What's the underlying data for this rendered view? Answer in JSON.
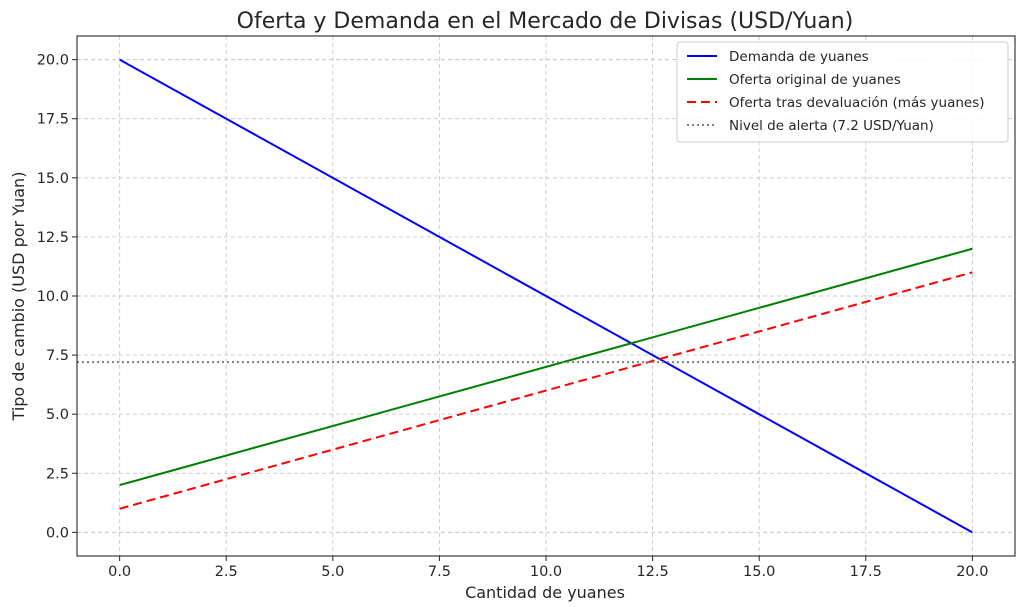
{
  "chart_data": {
    "type": "line",
    "title": "Oferta y Demanda en el Mercado de Divisas (USD/Yuan)",
    "xlabel": "Cantidad de yuanes",
    "ylabel": "Tipo de cambio (USD por Yuan)",
    "xlim": [
      -1,
      21
    ],
    "ylim": [
      -1,
      21
    ],
    "xticks": [
      "0.0",
      "2.5",
      "5.0",
      "7.5",
      "10.0",
      "12.5",
      "15.0",
      "17.5",
      "20.0"
    ],
    "yticks": [
      "0.0",
      "2.5",
      "5.0",
      "7.5",
      "10.0",
      "12.5",
      "15.0",
      "17.5",
      "20.0"
    ],
    "grid": true,
    "legend_position": "top-right",
    "series": [
      {
        "name": "Demanda de yuanes",
        "x": [
          0,
          20
        ],
        "y": [
          20,
          0
        ],
        "color": "#0000ff",
        "style": "solid"
      },
      {
        "name": "Oferta original de yuanes",
        "x": [
          0,
          20
        ],
        "y": [
          2,
          12
        ],
        "color": "#008000",
        "style": "solid"
      },
      {
        "name": "Oferta tras devaluación (más yuanes)",
        "x": [
          0,
          20
        ],
        "y": [
          1,
          11
        ],
        "color": "#ff0000",
        "style": "dashed"
      },
      {
        "name": "Nivel de alerta (7.2 USD/Yuan)",
        "hline": 7.2,
        "color": "#808080",
        "style": "dotted"
      }
    ]
  }
}
